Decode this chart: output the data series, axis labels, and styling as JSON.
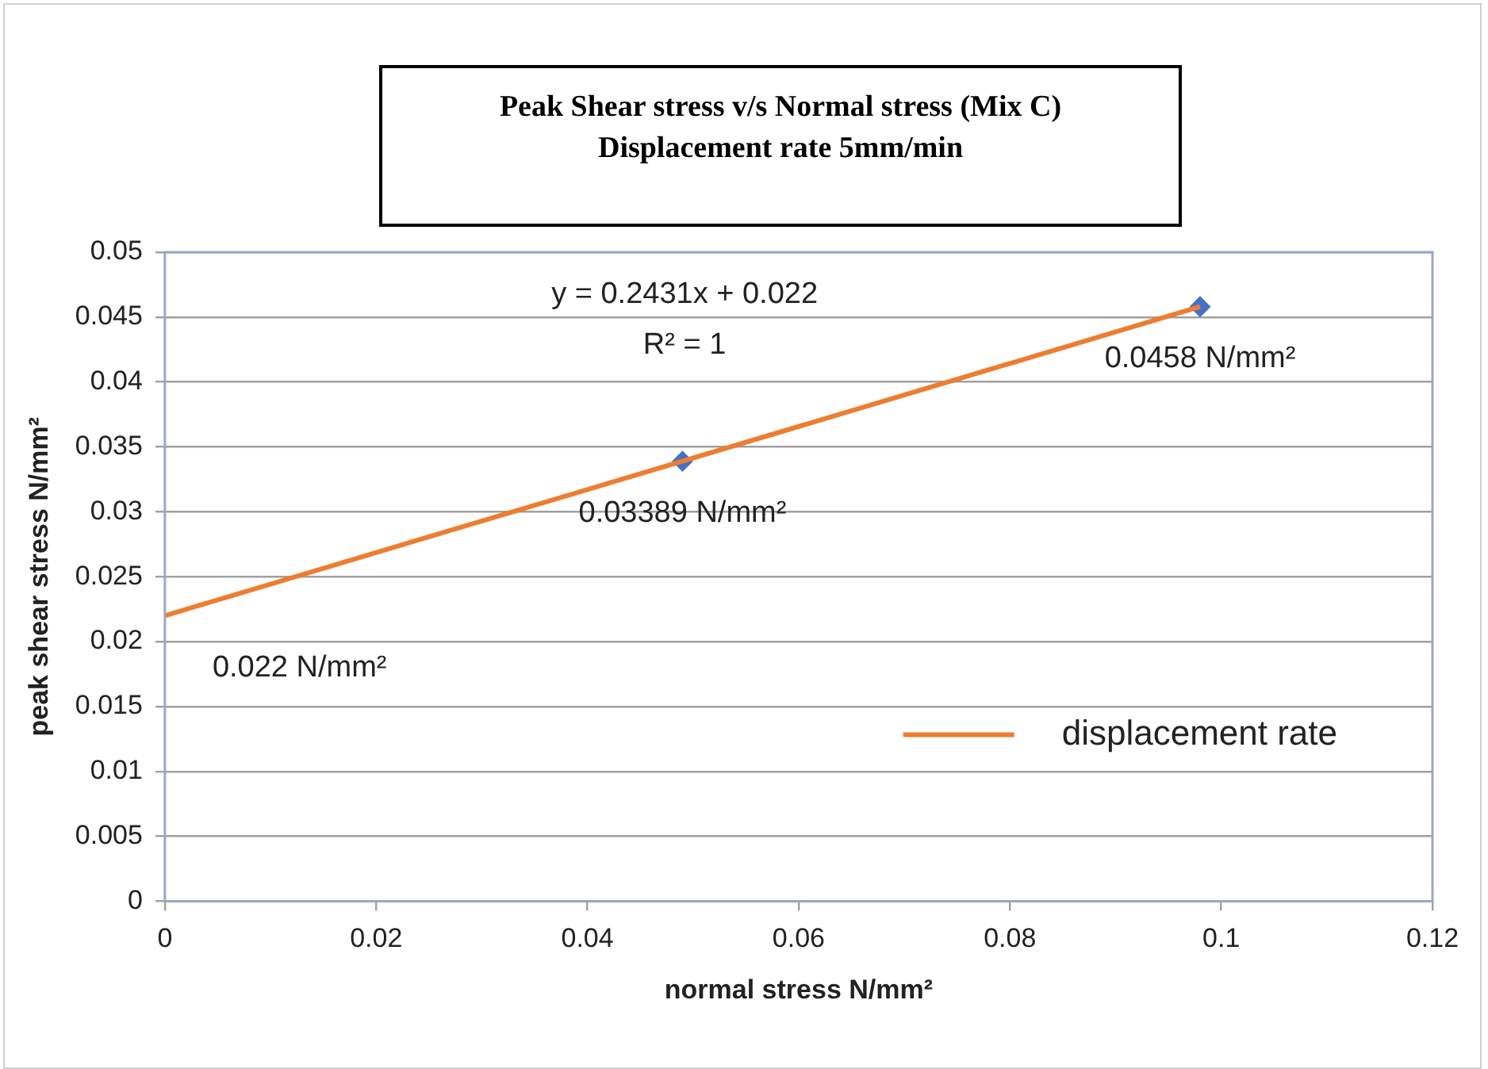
{
  "chart_data": {
    "type": "scatter",
    "title": "Peak Shear stress v/s Normal stress (Mix C)",
    "subtitle": "Displacement rate 5mm/min",
    "xlabel": "normal stress N/mm²",
    "ylabel": "peak shear stress N/mm²",
    "series": [
      {
        "color": "#4472c4",
        "marker": "diamond",
        "x": [
          0.049,
          0.098
        ],
        "values": [
          0.03389,
          0.0458
        ]
      },
      {
        "type": "line",
        "name": "displacement rate",
        "color": "#ed7d31",
        "marker": "none",
        "x": [
          0,
          0.098
        ],
        "values": [
          0.022,
          0.0458
        ]
      }
    ],
    "annotations": [
      "y = 0.2431x + 0.022",
      "R² = 1",
      {
        "text": "0.022 N/mm²",
        "x": 0,
        "y": 0.022
      },
      {
        "text": "0.03389 N/mm²",
        "x": 0.049,
        "y": 0.03389
      },
      {
        "text": "0.0458 N/mm²",
        "x": 0.098,
        "y": 0.0458
      }
    ],
    "xlim": [
      0,
      0.12
    ],
    "xticks": [
      0,
      0.02,
      0.04,
      0.06,
      0.08,
      0.1,
      0.12
    ],
    "ylim": [
      0,
      0.05
    ],
    "yticks": [
      0,
      0.005,
      0.01,
      0.015,
      0.02,
      0.025,
      0.03,
      0.035,
      0.04,
      0.045,
      0.05
    ],
    "grid": "y",
    "legend": "bottom right"
  }
}
